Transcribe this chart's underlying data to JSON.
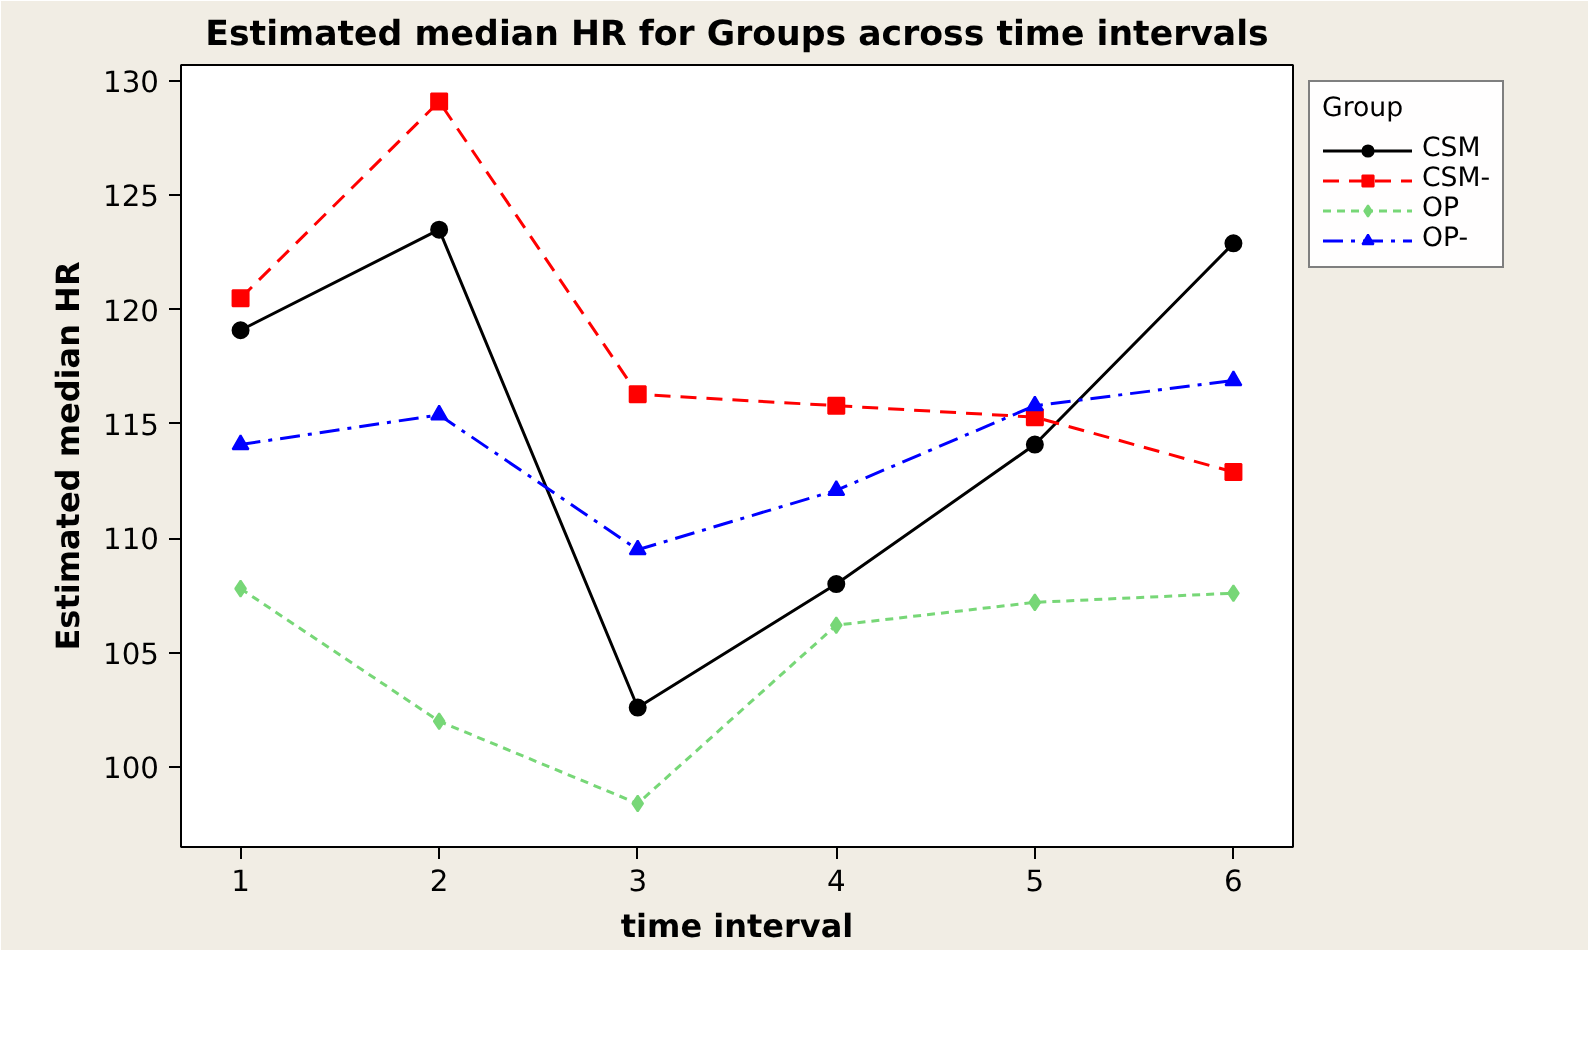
{
  "chart_data": {
    "type": "line",
    "title": "Estimated median HR for Groups across time intervals",
    "xlabel": "time interval",
    "ylabel": "Estimated median HR",
    "legend_title": "Group",
    "x": [
      1,
      2,
      3,
      4,
      5,
      6
    ],
    "series": [
      {
        "name": "CSM",
        "color": "#000000",
        "marker": "circle",
        "line_style": "solid",
        "values": [
          119.1,
          123.5,
          102.6,
          108.0,
          114.1,
          122.9
        ]
      },
      {
        "name": "CSM-",
        "color": "#ff0000",
        "marker": "square",
        "line_style": "dashed",
        "values": [
          120.5,
          129.1,
          116.3,
          115.8,
          115.3,
          112.9
        ]
      },
      {
        "name": "OP",
        "color": "#77d777",
        "marker": "diamond",
        "line_style": "dotted",
        "values": [
          107.8,
          102.0,
          98.4,
          106.2,
          107.2,
          107.6
        ]
      },
      {
        "name": "OP-",
        "color": "#0000ff",
        "marker": "triangle",
        "line_style": "dashdot",
        "values": [
          114.1,
          115.4,
          109.5,
          112.1,
          115.8,
          116.9
        ]
      }
    ],
    "xlim": [
      0.7,
      6.3
    ],
    "ylim": [
      96.5,
      130.7
    ],
    "xticks": [
      1,
      2,
      3,
      4,
      5,
      6
    ],
    "yticks": [
      100,
      105,
      110,
      115,
      120,
      125,
      130
    ],
    "grid": false,
    "legend": "right"
  }
}
